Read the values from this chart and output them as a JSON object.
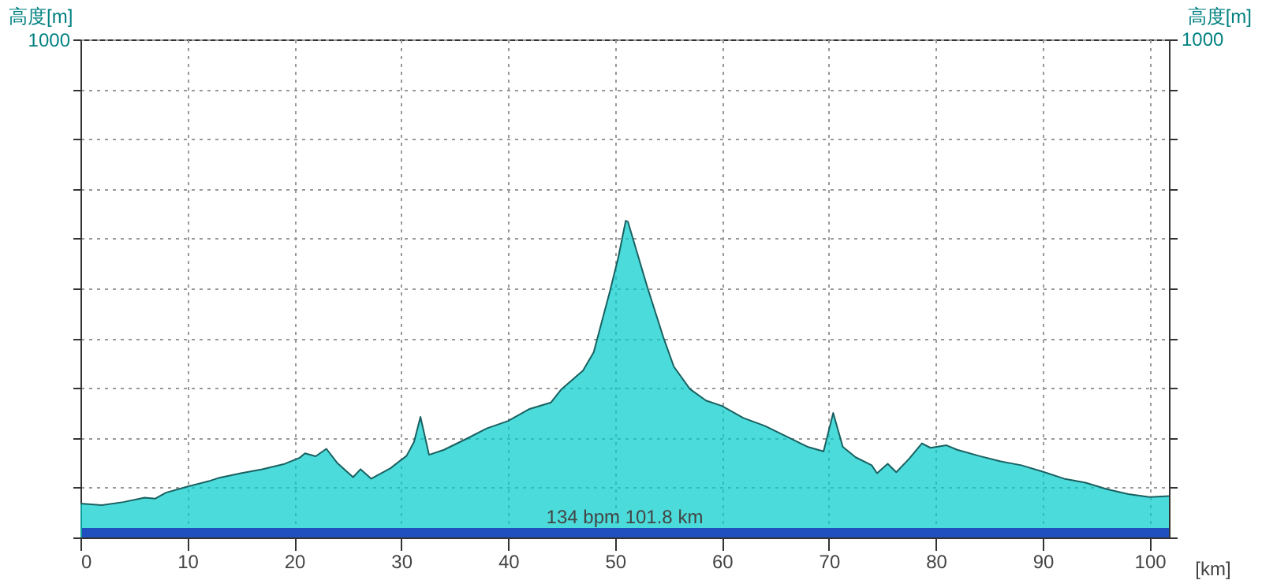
{
  "chart_data": {
    "type": "area",
    "xlabel": "[km]",
    "ylabel": "高度[m]",
    "y2label": "高度[m]",
    "x": [
      0,
      2,
      4,
      6,
      7,
      8,
      10,
      12,
      13,
      15,
      17,
      19,
      20.5,
      21,
      22,
      23,
      24,
      25.5,
      26.2,
      27.2,
      29,
      30.5,
      31.2,
      31.8,
      32.6,
      34,
      36,
      38,
      40,
      42,
      44,
      45,
      47,
      48,
      49.5,
      50.3,
      51,
      51.2,
      53,
      54.5,
      55.5,
      57,
      58.5,
      60,
      62,
      64,
      66,
      68,
      69.5,
      70.4,
      71.3,
      72.5,
      74,
      74.5,
      75.5,
      76.3,
      77.5,
      78.7,
      79.5,
      81,
      82,
      84,
      86,
      88,
      90,
      92,
      94,
      96,
      98,
      100,
      101.8
    ],
    "series": [
      {
        "color": "#00cccc",
        "values": [
          68,
          65,
          71,
          80,
          78,
          90,
          102,
          113,
          120,
          129,
          137,
          147,
          160,
          169,
          163,
          178,
          150,
          121,
          137,
          118,
          139,
          164,
          192,
          242,
          166,
          176,
          197,
          219,
          234,
          258,
          271,
          298,
          335,
          372,
          493,
          562,
          636,
          634,
          504,
          403,
          343,
          298,
          275,
          264,
          240,
          224,
          203,
          182,
          173,
          250,
          182,
          161,
          145,
          129,
          148,
          131,
          158,
          189,
          180,
          185,
          176,
          164,
          153,
          145,
          132,
          118,
          110,
          97,
          87,
          81,
          83
        ]
      }
    ],
    "xlim": [
      0,
      101.8
    ],
    "xticks": [
      0,
      10,
      20,
      30,
      40,
      50,
      60,
      70,
      80,
      90,
      100
    ],
    "ylim": [
      0,
      1000
    ],
    "yticks": [
      {
        "value": 0,
        "label": null
      },
      {
        "value": 100,
        "label": null
      },
      {
        "value": 200,
        "label": null
      },
      {
        "value": 300,
        "label": null
      },
      {
        "value": 400,
        "label": null
      },
      {
        "value": 500,
        "label": null
      },
      {
        "value": 600,
        "label": null
      },
      {
        "value": 700,
        "label": null
      },
      {
        "value": 800,
        "label": null
      },
      {
        "value": 900,
        "label": null
      },
      1000
    ],
    "annotations": [
      "134 bpm 101.8 km",
      "1000"
    ],
    "grid": true,
    "line_style": "solid",
    "marker": "none"
  }
}
